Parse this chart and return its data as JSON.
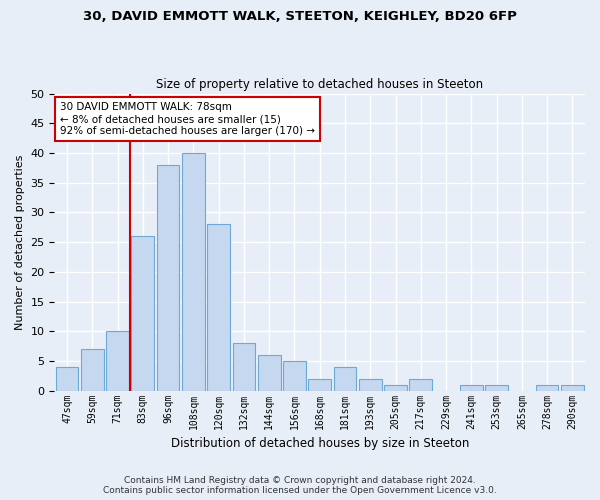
{
  "title1": "30, DAVID EMMOTT WALK, STEETON, KEIGHLEY, BD20 6FP",
  "title2": "Size of property relative to detached houses in Steeton",
  "xlabel": "Distribution of detached houses by size in Steeton",
  "ylabel": "Number of detached properties",
  "categories": [
    "47sqm",
    "59sqm",
    "71sqm",
    "83sqm",
    "96sqm",
    "108sqm",
    "120sqm",
    "132sqm",
    "144sqm",
    "156sqm",
    "168sqm",
    "181sqm",
    "193sqm",
    "205sqm",
    "217sqm",
    "229sqm",
    "241sqm",
    "253sqm",
    "265sqm",
    "278sqm",
    "290sqm"
  ],
  "values": [
    4,
    7,
    10,
    26,
    38,
    40,
    28,
    8,
    6,
    5,
    2,
    4,
    2,
    1,
    2,
    0,
    1,
    1,
    0,
    1,
    1
  ],
  "bar_color": "#c5d8ef",
  "bar_edge_color": "#6aaad4",
  "vline_x": 2.5,
  "vline_color": "#cc0000",
  "annotation_text": "30 DAVID EMMOTT WALK: 78sqm\n← 8% of detached houses are smaller (15)\n92% of semi-detached houses are larger (170) →",
  "annotation_box_color": "#ffffff",
  "annotation_box_edge": "#cc0000",
  "footer_text": "Contains HM Land Registry data © Crown copyright and database right 2024.\nContains public sector information licensed under the Open Government Licence v3.0.",
  "ylim": [
    0,
    50
  ],
  "bg_color": "#e8eef7",
  "grid_color": "#ffffff"
}
